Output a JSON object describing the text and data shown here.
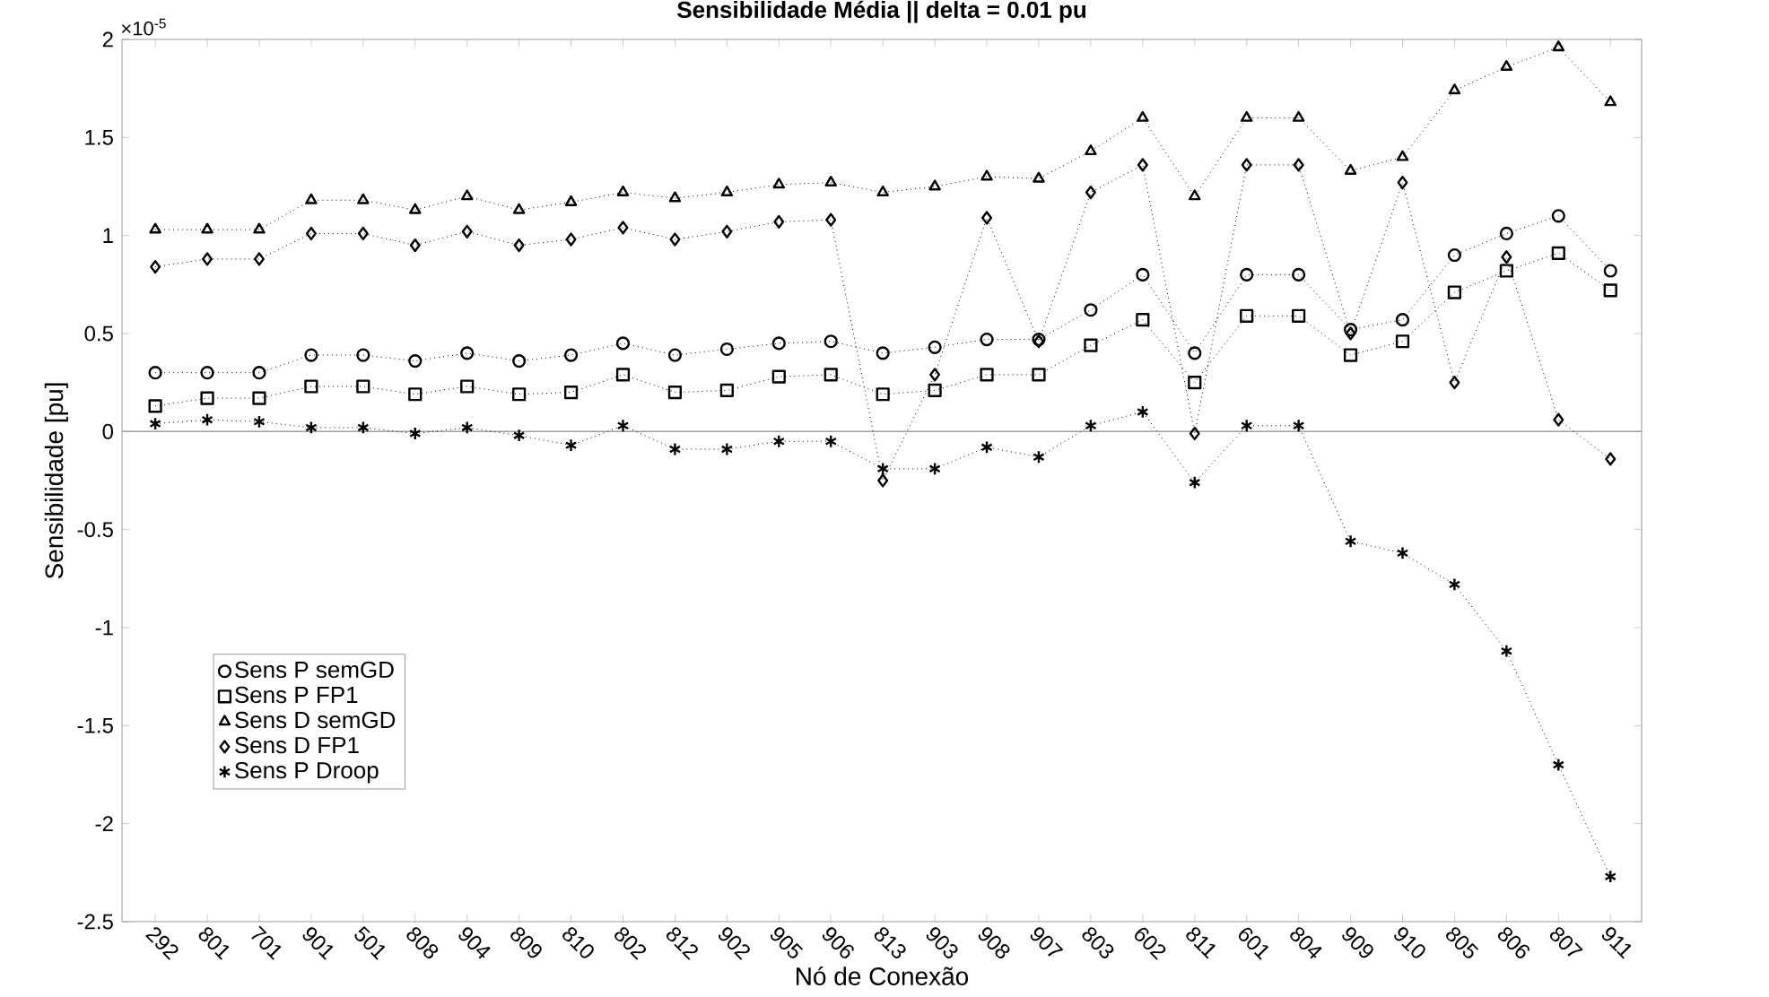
{
  "chart_data": {
    "type": "line",
    "title": "Sensibilidade Média || delta = 0.01 pu",
    "xlabel": "Nó de Conexão",
    "ylabel": "Sensibilidade [pu]",
    "annotations": [
      "×10$^{-5}$"
    ],
    "categories": [
      "292",
      "801",
      "701",
      "901",
      "501",
      "808",
      "904",
      "809",
      "810",
      "802",
      "812",
      "902",
      "905",
      "906",
      "813",
      "903",
      "908",
      "907",
      "803",
      "602",
      "811",
      "601",
      "804",
      "909",
      "910",
      "805",
      "806",
      "807",
      "911"
    ],
    "ylim": [
      -2.5,
      2
    ],
    "yticks": [
      -2.5,
      -2,
      -1.5,
      -1,
      -0.5,
      0,
      0.5,
      1,
      1.5,
      2
    ],
    "ref_lines": [
      {
        "axis": "y",
        "value": 0,
        "color": "#a0a0a0"
      }
    ],
    "grid": false,
    "legend": "bottom left",
    "line_style": "dotted",
    "series": [
      {
        "name": "Sens P semGD",
        "color": "#000000",
        "marker": "circle",
        "values": [
          0.3,
          0.3,
          0.3,
          0.39,
          0.39,
          0.36,
          0.4,
          0.36,
          0.39,
          0.45,
          0.39,
          0.42,
          0.45,
          0.46,
          0.4,
          0.43,
          0.47,
          0.47,
          0.62,
          0.8,
          0.4,
          0.8,
          0.8,
          0.52,
          0.57,
          0.9,
          1.01,
          1.1,
          0.82
        ]
      },
      {
        "name": "Sens P FP1",
        "color": "#000000",
        "marker": "square",
        "values": [
          0.13,
          0.17,
          0.17,
          0.23,
          0.23,
          0.19,
          0.23,
          0.19,
          0.2,
          0.29,
          0.2,
          0.21,
          0.28,
          0.29,
          0.19,
          0.21,
          0.29,
          0.29,
          0.44,
          0.57,
          0.25,
          0.59,
          0.59,
          0.39,
          0.46,
          0.71,
          0.82,
          0.91,
          0.72
        ]
      },
      {
        "name": "Sens D semGD",
        "color": "#000000",
        "marker": "triangle",
        "values": [
          1.03,
          1.03,
          1.03,
          1.18,
          1.18,
          1.13,
          1.2,
          1.13,
          1.17,
          1.22,
          1.19,
          1.22,
          1.26,
          1.27,
          1.22,
          1.25,
          1.3,
          1.29,
          1.43,
          1.6,
          1.2,
          1.6,
          1.6,
          1.33,
          1.4,
          1.74,
          1.86,
          1.96,
          1.68
        ]
      },
      {
        "name": "Sens D FP1",
        "color": "#000000",
        "marker": "diamond",
        "values": [
          0.84,
          0.88,
          0.88,
          1.01,
          1.01,
          0.95,
          1.02,
          0.95,
          0.98,
          1.04,
          0.98,
          1.02,
          1.07,
          1.08,
          -0.25,
          0.29,
          1.09,
          0.46,
          1.22,
          1.36,
          -0.01,
          1.36,
          1.36,
          0.5,
          1.27,
          0.25,
          0.89,
          0.06,
          -0.14
        ]
      },
      {
        "name": "Sens P Droop",
        "color": "#000000",
        "marker": "cross",
        "values": [
          0.04,
          0.06,
          0.05,
          0.02,
          0.02,
          -0.01,
          0.02,
          -0.02,
          -0.07,
          0.03,
          -0.09,
          -0.09,
          -0.05,
          -0.05,
          -0.19,
          -0.19,
          -0.08,
          -0.13,
          0.03,
          0.1,
          -0.26,
          0.03,
          0.03,
          -0.56,
          -0.62,
          -0.78,
          -1.12,
          -1.7,
          -2.27
        ]
      }
    ]
  }
}
